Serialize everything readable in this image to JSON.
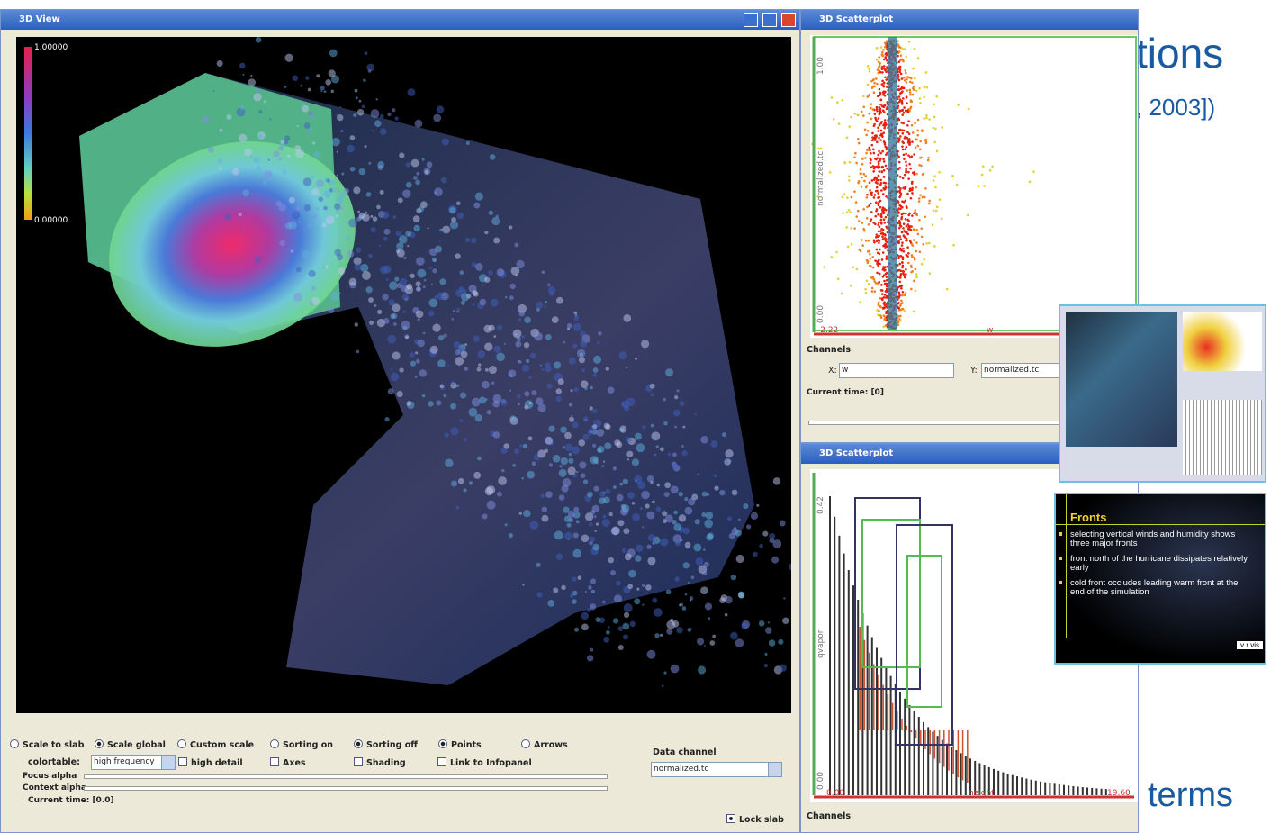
{
  "slide": {
    "title_fragment": "tions",
    "citation_fragment": ", 2003])",
    "body_fragment": "terms"
  },
  "view_window": {
    "title": "3D View",
    "colorbar": {
      "max_label": "1.00000",
      "min_label": "0.00000"
    },
    "options": [
      "Scale to slab",
      "Scale global",
      "Custom scale",
      "Sorting on",
      "Sorting off",
      "Points",
      "Arrows"
    ],
    "colortable_label": "colortable:",
    "colortable_value": "high frequency",
    "checkboxes": [
      "high detail",
      "Axes",
      "Shading",
      "Link to Infopanel"
    ],
    "data_channel_label": "Data channel",
    "data_channel_value": "normalized.tc",
    "focus_alpha": "Focus alpha",
    "context_alpha": "Context alpha",
    "current_time": "Current time: [0.0]",
    "lock_slab": "Lock slab"
  },
  "scatter_window": {
    "title": "3D Scatterplot",
    "y_top": "1.00",
    "y_bottom": "0.00",
    "y_label": "normalized.tc",
    "x_left": "-2.22",
    "x_label": "w",
    "channels": "Channels",
    "x_field_label": "X:",
    "x_field_value": "w",
    "y_field_label": "Y:",
    "y_field_value": "normalized.tc",
    "current_time": "Current time: [0]"
  },
  "histogram_window": {
    "title": "3D Scatterplot",
    "y_top": "0.42",
    "y_bottom": "0.00",
    "y_label": "qvapor",
    "x_left": "0.00",
    "x_label": "height",
    "x_right": "19.60",
    "channels": "Channels"
  },
  "thumbnail_slide": {
    "title": "Fronts",
    "bullets": [
      "selecting vertical winds and humidity shows three major fronts",
      "front north of the hurricane dissipates relatively early",
      "cold front occludes leading warm front at the end of the simulation"
    ],
    "logo": "v r vis"
  }
}
